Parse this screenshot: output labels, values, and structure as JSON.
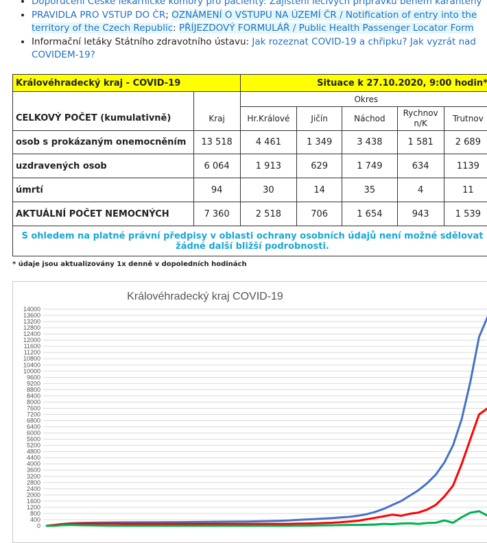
{
  "links": [
    {
      "text": "Doporučení České lékařnické komory pro pacienty: Zajištění léčivých přípravků během karantény",
      "link": true
    },
    {
      "parts": [
        {
          "text": "PRAVIDLA PRO VSTUP DO ČR",
          "link": true
        },
        {
          "text": "; ",
          "link": false
        },
        {
          "text": "OZNÁMENÍ O VSTUPU NA ÚZEMÍ ČR / Notification of entry into the territory of the Czech Republic",
          "link": false
        },
        {
          "text": ": ",
          "link": false
        },
        {
          "text": "PŘÍJEZDOVÝ FORMULÁŘ / Public Health Passenger Locator Form",
          "link": true
        }
      ]
    },
    {
      "parts": [
        {
          "text": "Informační letáky Státního zdravotního ústavu: ",
          "link": false
        },
        {
          "text": "Jak rozeznat COVID-19 a chřipku? Jak vyzrát nad COVIDEM-19?",
          "link": true
        }
      ]
    }
  ],
  "table": {
    "region": "Královéhradecký kraj - COVID-19",
    "situation": "Situace k 27.10.2020, 9:00 hodin*",
    "okres_label": "Okres",
    "count_label": "CELKOVÝ POČET (kumulativně)",
    "columns": [
      "Kraj",
      "Hr.Králové",
      "Jičín",
      "Náchod",
      "Rychnov n/K",
      "Trutnov"
    ],
    "rows": [
      {
        "label": "osob s prokázaným onemocněním",
        "values": [
          "13 518",
          "4 461",
          "1 349",
          "3 438",
          "1 581",
          "2 689"
        ]
      },
      {
        "label": "uzdravených osob",
        "values": [
          "6 064",
          "1 913",
          "629",
          "1 749",
          "634",
          "1139"
        ]
      },
      {
        "label": "úmrtí",
        "values": [
          "94",
          "30",
          "14",
          "35",
          "4",
          "11"
        ]
      },
      {
        "label": "AKTUÁLNÍ POČET NEMOCNÝCH",
        "values": [
          "7 360",
          "2 518",
          "706",
          "1 654",
          "943",
          "1 539"
        ]
      }
    ],
    "privacy_note": "S ohledem na platné právní předpisy v oblasti ochrany osobních údajů není možné sdělovat žádné další bližší podrobnosti."
  },
  "footnote": "* údaje jsou aktualizovány 1x denně v dopoledních hodinách",
  "chart_data": {
    "type": "line",
    "title": "Královéhradecký kraj COVID-19",
    "ylim": [
      0,
      14000
    ],
    "yticks": [
      0,
      400,
      800,
      1200,
      1600,
      2000,
      2400,
      2800,
      3200,
      3600,
      4000,
      4400,
      4800,
      5200,
      5600,
      6000,
      6400,
      6800,
      7200,
      7600,
      8000,
      8400,
      8800,
      9200,
      9600,
      10000,
      10400,
      10800,
      11200,
      11600,
      12000,
      12400,
      12800,
      13200,
      13600,
      14000
    ],
    "grid": true,
    "series": [
      {
        "color": "#4472c4",
        "values": [
          0,
          60,
          130,
          170,
          190,
          200,
          210,
          215,
          220,
          225,
          225,
          230,
          230,
          235,
          240,
          240,
          245,
          250,
          255,
          260,
          265,
          270,
          275,
          280,
          290,
          300,
          310,
          330,
          350,
          380,
          410,
          440,
          470,
          500,
          540,
          580,
          650,
          750,
          900,
          1100,
          1350,
          1600,
          1950,
          2300,
          2750,
          3300,
          4100,
          5200,
          6900,
          9300,
          12200,
          13518
        ]
      },
      {
        "color": "#ff0000",
        "values": [
          0,
          55,
          110,
          140,
          150,
          150,
          145,
          140,
          140,
          135,
          135,
          135,
          135,
          135,
          135,
          135,
          130,
          130,
          130,
          130,
          130,
          130,
          130,
          130,
          130,
          130,
          130,
          130,
          130,
          140,
          150,
          160,
          180,
          200,
          230,
          280,
          330,
          420,
          520,
          620,
          720,
          650,
          780,
          860,
          1050,
          1350,
          1900,
          2600,
          4000,
          5600,
          7200,
          7600
        ]
      },
      {
        "color": "#00b050",
        "values": [
          0,
          5,
          50,
          60,
          40,
          30,
          20,
          10,
          5,
          5,
          5,
          5,
          5,
          5,
          5,
          5,
          5,
          5,
          5,
          5,
          5,
          5,
          5,
          5,
          5,
          5,
          5,
          5,
          5,
          10,
          15,
          20,
          30,
          40,
          50,
          60,
          60,
          70,
          90,
          130,
          110,
          150,
          170,
          130,
          180,
          200,
          350,
          200,
          560,
          850,
          950,
          650
        ]
      }
    ]
  }
}
